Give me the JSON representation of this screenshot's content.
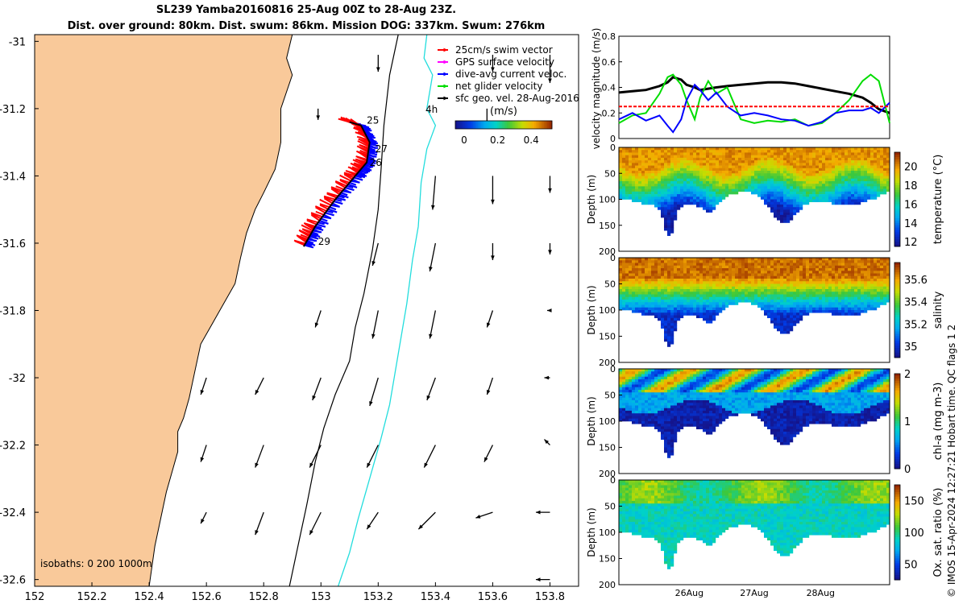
{
  "title": {
    "line1": "SL239 Yamba20160816 25-Aug 00Z to 28-Aug 23Z.",
    "line2": "Dist. over ground: 80km. Dist. swum: 86km. Mission DOG: 337km. Swum: 276km"
  },
  "credit": "© IMOS 15-Apr-2024 12:27:21 Hobart time. QC flags 1  2",
  "chart_data": [
    {
      "type": "scatter",
      "panel": "map",
      "xlim": [
        152,
        153.9
      ],
      "ylim": [
        -32.62,
        -30.98
      ],
      "xticks": [
        "152",
        "152.2",
        "152.4",
        "152.6",
        "152.8",
        "153",
        "153.2",
        "153.4",
        "153.6",
        "153.8"
      ],
      "yticks": [
        "-31",
        "-31.2",
        "-31.4",
        "-31.6",
        "-31.8",
        "-32",
        "-32.2",
        "-32.4",
        "-32.6"
      ],
      "legend": [
        {
          "label": "25cm/s swim vector",
          "color": "#ff0000"
        },
        {
          "label": "GPS surface velocity",
          "color": "#ff00ff"
        },
        {
          "label": "dive-avg current veloc.",
          "color": "#0000ff"
        },
        {
          "label": "net glider velocity",
          "color": "#00dd00"
        },
        {
          "label": "sfc geo. vel. 28-Aug-2016",
          "color": "#000000"
        }
      ],
      "scale_arrow_label": "4h",
      "colorbar": {
        "label": "(m/s)",
        "ticks": [
          "0",
          "0.2",
          "0.4"
        ]
      },
      "isobaths_label": "isobaths: 0   200  1000m",
      "day_labels": [
        {
          "text": "25",
          "lon": 153.16,
          "lat": -31.245
        },
        {
          "text": "27",
          "lon": 153.19,
          "lat": -31.33
        },
        {
          "text": "26",
          "lon": 153.17,
          "lat": -31.37
        },
        {
          "text": "29",
          "lon": 152.99,
          "lat": -31.605
        }
      ],
      "track": [
        [
          153.1,
          -31.24
        ],
        [
          153.14,
          -31.25
        ],
        [
          153.17,
          -31.3
        ],
        [
          153.16,
          -31.36
        ],
        [
          153.12,
          -31.4
        ],
        [
          153.05,
          -31.47
        ],
        [
          152.98,
          -31.55
        ],
        [
          152.94,
          -31.61
        ]
      ],
      "coastline": [
        [
          152.9,
          -30.98
        ],
        [
          152.88,
          -31.05
        ],
        [
          152.9,
          -31.1
        ],
        [
          152.86,
          -31.2
        ],
        [
          152.86,
          -31.3
        ],
        [
          152.84,
          -31.38
        ],
        [
          152.8,
          -31.45
        ],
        [
          152.77,
          -31.5
        ],
        [
          152.74,
          -31.57
        ],
        [
          152.72,
          -31.64
        ],
        [
          152.7,
          -31.72
        ],
        [
          152.66,
          -31.78
        ],
        [
          152.62,
          -31.84
        ],
        [
          152.58,
          -31.9
        ],
        [
          152.56,
          -31.98
        ],
        [
          152.54,
          -32.06
        ],
        [
          152.52,
          -32.12
        ],
        [
          152.5,
          -32.16
        ],
        [
          152.5,
          -32.22
        ],
        [
          152.48,
          -32.28
        ],
        [
          152.46,
          -32.34
        ],
        [
          152.44,
          -32.42
        ],
        [
          152.42,
          -32.5
        ],
        [
          152.4,
          -32.62
        ]
      ],
      "isobath_200": [
        [
          153.27,
          -30.98
        ],
        [
          153.24,
          -31.1
        ],
        [
          153.22,
          -31.25
        ],
        [
          153.21,
          -31.38
        ],
        [
          153.2,
          -31.5
        ],
        [
          153.18,
          -31.62
        ],
        [
          153.15,
          -31.75
        ],
        [
          153.12,
          -31.85
        ],
        [
          153.1,
          -31.95
        ],
        [
          153.05,
          -32.05
        ],
        [
          153.01,
          -32.15
        ],
        [
          152.98,
          -32.25
        ],
        [
          152.95,
          -32.38
        ],
        [
          152.92,
          -32.5
        ],
        [
          152.89,
          -32.62
        ]
      ],
      "isobath_1000": [
        [
          153.37,
          -30.98
        ],
        [
          153.36,
          -31.05
        ],
        [
          153.39,
          -31.1
        ],
        [
          153.37,
          -31.2
        ],
        [
          153.4,
          -31.25
        ],
        [
          153.37,
          -31.32
        ],
        [
          153.35,
          -31.42
        ],
        [
          153.34,
          -31.55
        ],
        [
          153.32,
          -31.65
        ],
        [
          153.3,
          -31.78
        ],
        [
          153.28,
          -31.88
        ],
        [
          153.26,
          -31.98
        ],
        [
          153.24,
          -32.08
        ],
        [
          153.21,
          -32.18
        ],
        [
          153.17,
          -32.3
        ],
        [
          153.13,
          -32.42
        ],
        [
          153.1,
          -32.52
        ],
        [
          153.06,
          -32.62
        ]
      ],
      "vectors": [
        {
          "lon": 153.2,
          "lat": -31.04,
          "u": 0,
          "v": -0.3
        },
        {
          "lon": 153.6,
          "lat": -31.04,
          "u": 0,
          "v": -0.3
        },
        {
          "lon": 153.8,
          "lat": -31.04,
          "u": 0,
          "v": -0.5
        },
        {
          "lon": 152.99,
          "lat": -31.2,
          "u": 0,
          "v": -0.2
        },
        {
          "lon": 153.58,
          "lat": -31.2,
          "u": 0,
          "v": -0.3
        },
        {
          "lon": 153.4,
          "lat": -31.4,
          "u": -0.05,
          "v": -0.6
        },
        {
          "lon": 153.6,
          "lat": -31.4,
          "u": 0,
          "v": -0.5
        },
        {
          "lon": 153.8,
          "lat": -31.4,
          "u": 0,
          "v": -0.3
        },
        {
          "lon": 153.2,
          "lat": -31.6,
          "u": -0.1,
          "v": -0.4
        },
        {
          "lon": 153.4,
          "lat": -31.6,
          "u": -0.1,
          "v": -0.5
        },
        {
          "lon": 153.6,
          "lat": -31.6,
          "u": 0,
          "v": -0.3
        },
        {
          "lon": 153.8,
          "lat": -31.6,
          "u": 0,
          "v": -0.2
        },
        {
          "lon": 153.0,
          "lat": -31.8,
          "u": -0.1,
          "v": -0.3
        },
        {
          "lon": 153.2,
          "lat": -31.8,
          "u": -0.1,
          "v": -0.5
        },
        {
          "lon": 153.4,
          "lat": -31.8,
          "u": -0.1,
          "v": -0.5
        },
        {
          "lon": 153.6,
          "lat": -31.8,
          "u": -0.1,
          "v": -0.3
        },
        {
          "lon": 153.8,
          "lat": -31.8,
          "u": -0.05,
          "v": 0
        },
        {
          "lon": 152.6,
          "lat": -32.0,
          "u": -0.1,
          "v": -0.3
        },
        {
          "lon": 152.8,
          "lat": -32.0,
          "u": -0.15,
          "v": -0.3
        },
        {
          "lon": 153.0,
          "lat": -32.0,
          "u": -0.15,
          "v": -0.4
        },
        {
          "lon": 153.2,
          "lat": -32.0,
          "u": -0.15,
          "v": -0.5
        },
        {
          "lon": 153.4,
          "lat": -32.0,
          "u": -0.15,
          "v": -0.4
        },
        {
          "lon": 153.6,
          "lat": -32.0,
          "u": -0.1,
          "v": -0.3
        },
        {
          "lon": 153.8,
          "lat": -32.0,
          "u": -0.1,
          "v": 0
        },
        {
          "lon": 152.6,
          "lat": -32.2,
          "u": -0.1,
          "v": -0.3
        },
        {
          "lon": 152.8,
          "lat": -32.2,
          "u": -0.15,
          "v": -0.4
        },
        {
          "lon": 153.0,
          "lat": -32.2,
          "u": -0.2,
          "v": -0.4
        },
        {
          "lon": 153.2,
          "lat": -32.2,
          "u": -0.2,
          "v": -0.4
        },
        {
          "lon": 153.4,
          "lat": -32.2,
          "u": -0.2,
          "v": -0.4
        },
        {
          "lon": 153.6,
          "lat": -32.2,
          "u": -0.15,
          "v": -0.3
        },
        {
          "lon": 153.8,
          "lat": -32.2,
          "u": -0.1,
          "v": 0.1
        },
        {
          "lon": 152.6,
          "lat": -32.4,
          "u": -0.1,
          "v": -0.2
        },
        {
          "lon": 152.8,
          "lat": -32.4,
          "u": -0.15,
          "v": -0.4
        },
        {
          "lon": 153.0,
          "lat": -32.4,
          "u": -0.2,
          "v": -0.4
        },
        {
          "lon": 153.2,
          "lat": -32.4,
          "u": -0.2,
          "v": -0.3
        },
        {
          "lon": 153.4,
          "lat": -32.4,
          "u": -0.3,
          "v": -0.3
        },
        {
          "lon": 153.6,
          "lat": -32.4,
          "u": -0.3,
          "v": -0.1
        },
        {
          "lon": 153.8,
          "lat": -32.4,
          "u": -0.25,
          "v": 0
        },
        {
          "lon": 153.8,
          "lat": -32.6,
          "u": -0.25,
          "v": 0
        }
      ]
    },
    {
      "type": "line",
      "panel": "velocity",
      "ylabel": "velocity magnitude (m/s)",
      "ylim": [
        0,
        0.8
      ],
      "yticks": [
        "0",
        "0.2",
        "0.4",
        "0.6",
        "0.8"
      ],
      "x": [
        0,
        0.05,
        0.1,
        0.15,
        0.18,
        0.2,
        0.23,
        0.25,
        0.28,
        0.3,
        0.33,
        0.36,
        0.4,
        0.45,
        0.5,
        0.55,
        0.6,
        0.65,
        0.7,
        0.75,
        0.8,
        0.85,
        0.9,
        0.93,
        0.96,
        1.0
      ],
      "series": [
        {
          "color": "#000000",
          "values": [
            0.36,
            0.37,
            0.38,
            0.41,
            0.44,
            0.48,
            0.46,
            0.42,
            0.4,
            0.38,
            0.39,
            0.4,
            0.41,
            0.42,
            0.43,
            0.44,
            0.44,
            0.43,
            0.41,
            0.39,
            0.37,
            0.35,
            0.32,
            0.28,
            0.23,
            0.2
          ]
        },
        {
          "color": "#00dd00",
          "values": [
            0.12,
            0.18,
            0.2,
            0.35,
            0.48,
            0.5,
            0.42,
            0.3,
            0.15,
            0.32,
            0.45,
            0.35,
            0.4,
            0.15,
            0.12,
            0.14,
            0.13,
            0.15,
            0.1,
            0.12,
            0.2,
            0.3,
            0.45,
            0.5,
            0.45,
            0.12
          ]
        },
        {
          "color": "#0000ff",
          "values": [
            0.15,
            0.2,
            0.14,
            0.18,
            0.1,
            0.05,
            0.15,
            0.3,
            0.42,
            0.38,
            0.3,
            0.36,
            0.25,
            0.18,
            0.2,
            0.18,
            0.15,
            0.14,
            0.1,
            0.13,
            0.2,
            0.22,
            0.22,
            0.24,
            0.2,
            0.28
          ]
        },
        {
          "color": "#ff0000",
          "values": [
            0.25,
            0.25,
            0.25,
            0.25,
            0.25,
            0.25,
            0.25,
            0.25,
            0.25,
            0.25,
            0.25,
            0.25,
            0.25,
            0.25,
            0.25,
            0.25,
            0.25,
            0.25,
            0.25,
            0.25,
            0.25,
            0.25,
            0.25,
            0.25,
            0.25,
            0.25
          ]
        }
      ]
    },
    {
      "type": "heatmap",
      "panel": "temperature",
      "ylabel": "Depth (m)",
      "ylim": [
        200,
        0
      ],
      "yticks": [
        "0",
        "50",
        "100",
        "150",
        "200"
      ],
      "colorbar": {
        "label": "temperature (°C)",
        "ticks": [
          "12",
          "14",
          "16",
          "18",
          "20"
        ],
        "range": [
          11.5,
          21.5
        ]
      }
    },
    {
      "type": "heatmap",
      "panel": "salinity",
      "ylabel": "Depth (m)",
      "ylim": [
        200,
        0
      ],
      "yticks": [
        "0",
        "50",
        "100",
        "150",
        "200"
      ],
      "colorbar": {
        "label": "salinity",
        "ticks": [
          "35",
          "35.2",
          "35.4",
          "35.6"
        ],
        "range": [
          34.9,
          35.75
        ]
      }
    },
    {
      "type": "heatmap",
      "panel": "chlorophyll",
      "ylabel": "Depth (m)",
      "ylim": [
        200,
        0
      ],
      "yticks": [
        "0",
        "50",
        "100",
        "150",
        "200"
      ],
      "colorbar": {
        "label": "chl-a  (mg m-3)",
        "ticks": [
          "0",
          "1",
          "2"
        ],
        "range": [
          0,
          2
        ]
      }
    },
    {
      "type": "heatmap",
      "panel": "oxygen",
      "ylabel": "Depth (m)",
      "ylim": [
        200,
        0
      ],
      "yticks": [
        "0",
        "50",
        "100",
        "150",
        "200"
      ],
      "xticks": [
        "26Aug",
        "27Aug",
        "28Aug"
      ],
      "colorbar": {
        "label": "Ox. sat. ratio (%)",
        "ticks": [
          "50",
          "100",
          "150"
        ],
        "range": [
          25,
          175
        ]
      }
    }
  ]
}
